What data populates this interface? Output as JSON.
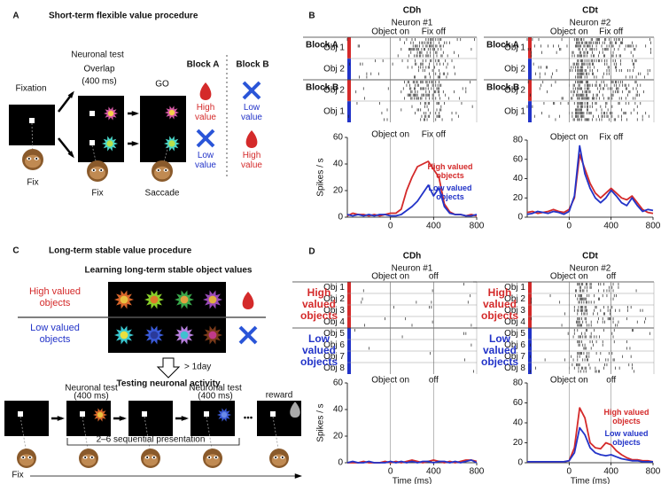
{
  "panel_a": {
    "label": "A",
    "title": "Short-term flexible value procedure",
    "fixation": "Fixation",
    "neuronal_test": "Neuronal test",
    "overlap": "Overlap",
    "duration": "(400 ms)",
    "go": "GO",
    "block_a": "Block A",
    "block_b": "Block B",
    "row1_a": "High value",
    "row1_b": "Low value",
    "row2_a": "Low value",
    "row2_b": "High value",
    "fix_1": "Fix",
    "fix_2": "Fix",
    "saccade": "Saccade"
  },
  "panel_b": {
    "label": "B"
  },
  "panel_c": {
    "label": "C",
    "title": "Long-term stable value procedure",
    "learning": "Learning long-term stable object values",
    "high": "High valued objects",
    "low": "Low valued objects",
    "delay": "> 1day",
    "testing": "Testing neuronal activity",
    "test_1": "Neuronal test",
    "duration_1": "(400 ms)",
    "test_2": "Neuronal test",
    "duration_2": "(400 ms)",
    "reward": "reward",
    "sequence": "2–6 sequential presentation",
    "ellipsis": "•••",
    "fix": "Fix"
  },
  "panel_d": {
    "label": "D"
  },
  "chart_data": [
    {
      "type": "line",
      "title": "CDh",
      "subtitle": "Neuron #1",
      "raster": {
        "events": [
          "Object on",
          "Fix off"
        ],
        "groups": [
          "Block A",
          "Block B"
        ],
        "rows": [
          "Obj 1",
          "Obj 2",
          "Obj 2",
          "Obj 1"
        ],
        "row_colors": [
          "#d42a2a",
          "#2233c8",
          "#d42a2a",
          "#2233c8"
        ]
      },
      "ylabel": "Spikes / s",
      "x": [
        -400,
        -350,
        -300,
        -250,
        -200,
        -150,
        -100,
        -50,
        0,
        50,
        100,
        150,
        200,
        250,
        300,
        350,
        400,
        450,
        500,
        550,
        600,
        650,
        700,
        750,
        800
      ],
      "xlim": [
        -400,
        800
      ],
      "xticks": [
        0,
        400,
        800
      ],
      "ylim": [
        0,
        60
      ],
      "yticks": [
        0,
        20,
        40,
        60
      ],
      "legend": "upper right",
      "series": [
        {
          "name": "High valued objects",
          "color": "#d42a2a",
          "values": [
            1,
            3,
            2,
            2,
            1,
            2,
            1,
            2,
            3,
            3,
            6,
            20,
            30,
            38,
            40,
            42,
            36,
            30,
            10,
            4,
            2,
            2,
            1,
            2,
            1
          ]
        },
        {
          "name": "Low valued objects",
          "color": "#2233c8",
          "values": [
            2,
            1,
            2,
            1,
            2,
            1,
            2,
            2,
            1,
            1,
            2,
            5,
            8,
            12,
            18,
            24,
            16,
            22,
            8,
            3,
            2,
            2,
            1,
            1,
            2
          ]
        }
      ]
    },
    {
      "type": "line",
      "title": "CDt",
      "subtitle": "Neuron #2",
      "raster": {
        "events": [
          "Object on",
          "Fix off"
        ],
        "groups": [
          "Block A",
          "Block B"
        ],
        "rows": [
          "Obj 1",
          "Obj 2",
          "Obj 2",
          "Obj 1"
        ],
        "row_colors": [
          "#d42a2a",
          "#2233c8",
          "#d42a2a",
          "#2233c8"
        ]
      },
      "x": [
        -400,
        -350,
        -300,
        -250,
        -200,
        -150,
        -100,
        -50,
        0,
        50,
        100,
        150,
        200,
        250,
        300,
        350,
        400,
        450,
        500,
        550,
        600,
        650,
        700,
        750,
        800
      ],
      "xlim": [
        -400,
        800
      ],
      "xticks": [
        0,
        400,
        800
      ],
      "ylim": [
        0,
        80
      ],
      "yticks": [
        0,
        20,
        40,
        60,
        80
      ],
      "series": [
        {
          "color": "#d42a2a",
          "values": [
            5,
            6,
            4,
            5,
            6,
            8,
            6,
            5,
            8,
            20,
            65,
            50,
            35,
            25,
            20,
            25,
            30,
            25,
            20,
            18,
            22,
            15,
            8,
            5,
            4
          ]
        },
        {
          "color": "#2233c8",
          "values": [
            3,
            4,
            6,
            5,
            4,
            6,
            5,
            3,
            6,
            22,
            74,
            45,
            30,
            20,
            15,
            20,
            28,
            22,
            15,
            12,
            20,
            12,
            6,
            8,
            7
          ]
        }
      ]
    },
    {
      "type": "line",
      "title": "CDh",
      "subtitle": "Neuron #1",
      "raster": {
        "events": [
          "Object on",
          "off"
        ],
        "groups": [
          "High valued objects",
          "Low valued objects"
        ],
        "group_colors": [
          "#d42a2a",
          "#2233c8"
        ],
        "rows": [
          "Obj 1",
          "Obj 2",
          "Obj 3",
          "Obj 4",
          "Obj 5",
          "Obj 6",
          "Obj 7",
          "Obj 8"
        ],
        "row_colors": [
          "#d42a2a",
          "#d42a2a",
          "#d42a2a",
          "#d42a2a",
          "#2233c8",
          "#2233c8",
          "#2233c8",
          "#2233c8"
        ]
      },
      "ylabel": "Spikes / s",
      "xlabel": "Time (ms)",
      "x": [
        -400,
        -350,
        -300,
        -250,
        -200,
        -150,
        -100,
        -50,
        0,
        50,
        100,
        150,
        200,
        250,
        300,
        350,
        400,
        450,
        500,
        550,
        600,
        650,
        700,
        750,
        800
      ],
      "xlim": [
        -400,
        800
      ],
      "xticks": [
        0,
        400,
        800
      ],
      "ylim": [
        0,
        60
      ],
      "yticks": [
        0,
        20,
        40,
        60
      ],
      "series": [
        {
          "color": "#d42a2a",
          "values": [
            0,
            0,
            0,
            1,
            0,
            0,
            0,
            1,
            0,
            1,
            0,
            1,
            2,
            1,
            0,
            1,
            2,
            1,
            0,
            1,
            0,
            1,
            2,
            2,
            1
          ]
        },
        {
          "color": "#2233c8",
          "values": [
            0,
            1,
            0,
            0,
            1,
            0,
            0,
            0,
            1,
            0,
            1,
            0,
            1,
            0,
            1,
            1,
            0,
            1,
            1,
            0,
            1,
            0,
            1,
            2,
            0
          ]
        }
      ]
    },
    {
      "type": "line",
      "title": "CDt",
      "subtitle": "Neuron #2",
      "raster": {
        "events": [
          "Object on",
          "off"
        ],
        "groups": [
          "High valued objects",
          "Low valued objects"
        ],
        "group_colors": [
          "#d42a2a",
          "#2233c8"
        ],
        "rows": [
          "Obj 1",
          "Obj 2",
          "Obj 3",
          "Obj 4",
          "Obj 5",
          "Obj 6",
          "Obj 7",
          "Obj 8"
        ],
        "row_colors": [
          "#d42a2a",
          "#d42a2a",
          "#d42a2a",
          "#d42a2a",
          "#2233c8",
          "#2233c8",
          "#2233c8",
          "#2233c8"
        ]
      },
      "xlabel": "Time (ms)",
      "x": [
        -400,
        -350,
        -300,
        -250,
        -200,
        -150,
        -100,
        -50,
        0,
        50,
        100,
        150,
        200,
        250,
        300,
        350,
        400,
        450,
        500,
        550,
        600,
        650,
        700,
        750,
        800
      ],
      "xlim": [
        -400,
        800
      ],
      "xticks": [
        0,
        400,
        800
      ],
      "ylim": [
        0,
        80
      ],
      "yticks": [
        0,
        20,
        40,
        60,
        80
      ],
      "legend": "upper right",
      "series": [
        {
          "name": "High valued objects",
          "color": "#d42a2a",
          "values": [
            1,
            1,
            1,
            1,
            1,
            1,
            1,
            1,
            2,
            15,
            55,
            45,
            20,
            15,
            14,
            20,
            18,
            12,
            8,
            5,
            3,
            3,
            2,
            2,
            1
          ]
        },
        {
          "name": "Low valued objects",
          "color": "#2233c8",
          "values": [
            1,
            1,
            1,
            1,
            1,
            1,
            1,
            1,
            2,
            10,
            35,
            28,
            15,
            10,
            8,
            7,
            8,
            6,
            4,
            3,
            2,
            2,
            1,
            1,
            1
          ]
        }
      ]
    }
  ]
}
